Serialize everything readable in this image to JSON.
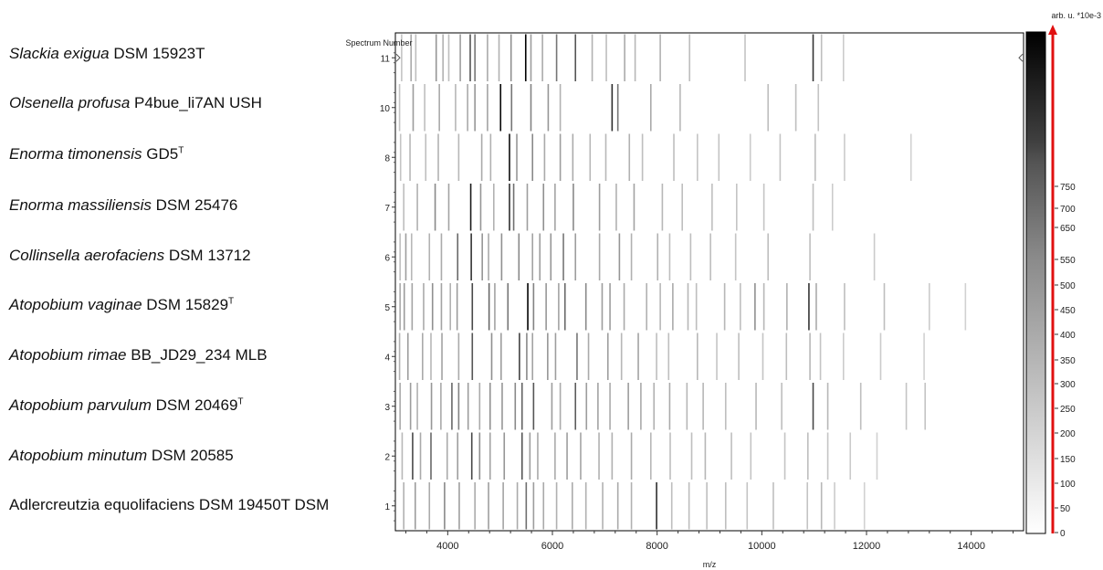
{
  "strain_labels": [
    {
      "italic": "Slackia exigua",
      "rest": " DSM 15923T",
      "sup": ""
    },
    {
      "italic": "Olsenella profusa",
      "rest": " P4bue_li7AN USH",
      "sup": ""
    },
    {
      "italic": "Enorma timonensis",
      "rest": " GD5",
      "sup": "T"
    },
    {
      "italic": "Enorma massiliensis",
      "rest": " DSM 25476",
      "sup": ""
    },
    {
      "italic": "Collinsella aerofaciens",
      "rest": " DSM 13712",
      "sup": ""
    },
    {
      "italic": "Atopobium vaginae",
      "rest": " DSM 15829",
      "sup": "T"
    },
    {
      "italic": "Atopobium rimae",
      "rest": " BB_JD29_234 MLB",
      "sup": ""
    },
    {
      "italic": "Atopobium parvulum",
      "rest": " DSM 20469",
      "sup": "T"
    },
    {
      "italic": "Atopobium minutum",
      "rest": " DSM 20585",
      "sup": ""
    },
    {
      "italic": "",
      "rest": "Adlercreutzia equolifaciens DSM 19450T DSM",
      "sup": ""
    }
  ],
  "chart_data": {
    "type": "heatmap",
    "ylabel": "Spectrum Number",
    "xlabel": "m/z",
    "xlim": [
      3000,
      15000
    ],
    "xticks": [
      4000,
      6000,
      8000,
      10000,
      12000,
      14000
    ],
    "colorbar": {
      "title": "arb. u. *10e-3",
      "ticks": [
        0,
        50,
        100,
        150,
        200,
        250,
        300,
        350,
        400,
        450,
        500,
        550,
        650,
        700,
        750
      ],
      "max": 780
    },
    "rows": [
      {
        "spectrum": "11",
        "peaks": [
          [
            3120,
            180
          ],
          [
            3300,
            260
          ],
          [
            3390,
            200
          ],
          [
            3780,
            320
          ],
          [
            3910,
            240
          ],
          [
            4020,
            200
          ],
          [
            4240,
            300
          ],
          [
            4430,
            520
          ],
          [
            4520,
            420
          ],
          [
            4760,
            260
          ],
          [
            4980,
            240
          ],
          [
            5210,
            340
          ],
          [
            5490,
            780
          ],
          [
            5590,
            300
          ],
          [
            5810,
            260
          ],
          [
            6080,
            420
          ],
          [
            6440,
            520
          ],
          [
            6760,
            240
          ],
          [
            7030,
            200
          ],
          [
            7380,
            260
          ],
          [
            7580,
            220
          ],
          [
            8060,
            240
          ],
          [
            8620,
            200
          ],
          [
            9680,
            180
          ],
          [
            10980,
            620
          ],
          [
            11140,
            200
          ],
          [
            11560,
            160
          ]
        ]
      },
      {
        "spectrum": "10",
        "peaks": [
          [
            3080,
            180
          ],
          [
            3340,
            300
          ],
          [
            3560,
            200
          ],
          [
            3840,
            260
          ],
          [
            4150,
            220
          ],
          [
            4380,
            260
          ],
          [
            4520,
            320
          ],
          [
            4760,
            280
          ],
          [
            5010,
            760
          ],
          [
            5220,
            420
          ],
          [
            5590,
            380
          ],
          [
            5920,
            320
          ],
          [
            6150,
            240
          ],
          [
            7140,
            640
          ],
          [
            7250,
            420
          ],
          [
            7880,
            260
          ],
          [
            8440,
            220
          ],
          [
            10120,
            200
          ],
          [
            10650,
            200
          ],
          [
            11080,
            180
          ]
        ]
      },
      {
        "spectrum": "8",
        "peaks": [
          [
            3100,
            180
          ],
          [
            3280,
            220
          ],
          [
            3580,
            200
          ],
          [
            3820,
            240
          ],
          [
            4210,
            220
          ],
          [
            4650,
            260
          ],
          [
            4820,
            240
          ],
          [
            5180,
            740
          ],
          [
            5320,
            320
          ],
          [
            5620,
            360
          ],
          [
            5850,
            260
          ],
          [
            6150,
            300
          ],
          [
            6390,
            260
          ],
          [
            6720,
            220
          ],
          [
            7020,
            220
          ],
          [
            7470,
            240
          ],
          [
            7720,
            200
          ],
          [
            8320,
            200
          ],
          [
            8770,
            180
          ],
          [
            9180,
            180
          ],
          [
            9780,
            160
          ],
          [
            10350,
            180
          ],
          [
            11020,
            200
          ],
          [
            11580,
            160
          ],
          [
            12850,
            140
          ]
        ]
      },
      {
        "spectrum": "7",
        "peaks": [
          [
            3160,
            200
          ],
          [
            3420,
            240
          ],
          [
            3760,
            360
          ],
          [
            4020,
            280
          ],
          [
            4440,
            700
          ],
          [
            4630,
            320
          ],
          [
            4880,
            240
          ],
          [
            5180,
            640
          ],
          [
            5260,
            440
          ],
          [
            5520,
            300
          ],
          [
            5830,
            340
          ],
          [
            6050,
            280
          ],
          [
            6400,
            360
          ],
          [
            6900,
            300
          ],
          [
            7220,
            240
          ],
          [
            7560,
            280
          ],
          [
            8100,
            220
          ],
          [
            8480,
            200
          ],
          [
            9050,
            200
          ],
          [
            9520,
            180
          ],
          [
            10040,
            180
          ],
          [
            10980,
            200
          ],
          [
            11350,
            160
          ]
        ]
      },
      {
        "spectrum": "6",
        "peaks": [
          [
            3090,
            200
          ],
          [
            3200,
            300
          ],
          [
            3310,
            220
          ],
          [
            3650,
            240
          ],
          [
            3880,
            260
          ],
          [
            4190,
            460
          ],
          [
            4450,
            620
          ],
          [
            4660,
            320
          ],
          [
            4780,
            260
          ],
          [
            5030,
            340
          ],
          [
            5360,
            360
          ],
          [
            5620,
            280
          ],
          [
            5760,
            300
          ],
          [
            5970,
            320
          ],
          [
            6210,
            420
          ],
          [
            6440,
            300
          ],
          [
            6900,
            260
          ],
          [
            7280,
            320
          ],
          [
            7510,
            240
          ],
          [
            8010,
            240
          ],
          [
            8240,
            200
          ],
          [
            8640,
            200
          ],
          [
            9020,
            200
          ],
          [
            9500,
            180
          ],
          [
            10120,
            200
          ],
          [
            10920,
            200
          ],
          [
            12150,
            160
          ]
        ]
      },
      {
        "spectrum": "5",
        "peaks": [
          [
            3090,
            260
          ],
          [
            3170,
            300
          ],
          [
            3320,
            280
          ],
          [
            3540,
            260
          ],
          [
            3710,
            340
          ],
          [
            3880,
            280
          ],
          [
            4050,
            240
          ],
          [
            4180,
            300
          ],
          [
            4470,
            560
          ],
          [
            4790,
            460
          ],
          [
            4900,
            280
          ],
          [
            5150,
            420
          ],
          [
            5530,
            780
          ],
          [
            5640,
            380
          ],
          [
            5880,
            320
          ],
          [
            6120,
            280
          ],
          [
            6240,
            460
          ],
          [
            6640,
            360
          ],
          [
            6950,
            300
          ],
          [
            7100,
            300
          ],
          [
            7370,
            260
          ],
          [
            7800,
            240
          ],
          [
            8060,
            220
          ],
          [
            8300,
            260
          ],
          [
            8590,
            220
          ],
          [
            8750,
            200
          ],
          [
            9290,
            220
          ],
          [
            9590,
            200
          ],
          [
            9870,
            340
          ],
          [
            10040,
            220
          ],
          [
            10480,
            240
          ],
          [
            10900,
            620
          ],
          [
            11040,
            260
          ],
          [
            11580,
            200
          ],
          [
            12340,
            200
          ],
          [
            13200,
            160
          ],
          [
            13890,
            140
          ]
        ]
      },
      {
        "spectrum": "4",
        "peaks": [
          [
            3080,
            240
          ],
          [
            3240,
            300
          ],
          [
            3520,
            260
          ],
          [
            3680,
            220
          ],
          [
            3890,
            280
          ],
          [
            4210,
            260
          ],
          [
            4470,
            520
          ],
          [
            4840,
            340
          ],
          [
            5020,
            300
          ],
          [
            5370,
            580
          ],
          [
            5510,
            360
          ],
          [
            5620,
            280
          ],
          [
            5910,
            320
          ],
          [
            6060,
            300
          ],
          [
            6470,
            420
          ],
          [
            6690,
            260
          ],
          [
            7060,
            300
          ],
          [
            7320,
            220
          ],
          [
            7640,
            280
          ],
          [
            7990,
            200
          ],
          [
            8220,
            200
          ],
          [
            8770,
            220
          ],
          [
            9140,
            180
          ],
          [
            9560,
            200
          ],
          [
            10020,
            180
          ],
          [
            10470,
            200
          ],
          [
            10920,
            220
          ],
          [
            11120,
            180
          ],
          [
            11560,
            160
          ],
          [
            12270,
            160
          ],
          [
            13100,
            140
          ]
        ]
      },
      {
        "spectrum": "3",
        "peaks": [
          [
            3090,
            260
          ],
          [
            3290,
            300
          ],
          [
            3420,
            240
          ],
          [
            3690,
            320
          ],
          [
            3870,
            260
          ],
          [
            4080,
            460
          ],
          [
            4210,
            380
          ],
          [
            4390,
            300
          ],
          [
            4610,
            260
          ],
          [
            4810,
            340
          ],
          [
            5040,
            320
          ],
          [
            5290,
            360
          ],
          [
            5420,
            480
          ],
          [
            5640,
            520
          ],
          [
            5990,
            300
          ],
          [
            6150,
            260
          ],
          [
            6440,
            500
          ],
          [
            6650,
            300
          ],
          [
            6870,
            280
          ],
          [
            7100,
            260
          ],
          [
            7450,
            300
          ],
          [
            7690,
            260
          ],
          [
            7940,
            240
          ],
          [
            8240,
            260
          ],
          [
            8570,
            220
          ],
          [
            8880,
            220
          ],
          [
            9310,
            200
          ],
          [
            9890,
            220
          ],
          [
            10380,
            200
          ],
          [
            10980,
            560
          ],
          [
            11260,
            220
          ],
          [
            11890,
            200
          ],
          [
            12760,
            180
          ],
          [
            13120,
            180
          ]
        ]
      },
      {
        "spectrum": "2",
        "peaks": [
          [
            3130,
            220
          ],
          [
            3330,
            560
          ],
          [
            3480,
            260
          ],
          [
            3680,
            460
          ],
          [
            3990,
            260
          ],
          [
            4190,
            300
          ],
          [
            4460,
            560
          ],
          [
            4610,
            340
          ],
          [
            4810,
            280
          ],
          [
            5080,
            320
          ],
          [
            5420,
            520
          ],
          [
            5570,
            300
          ],
          [
            5720,
            260
          ],
          [
            6050,
            260
          ],
          [
            6280,
            300
          ],
          [
            6540,
            280
          ],
          [
            6890,
            240
          ],
          [
            7140,
            240
          ],
          [
            7510,
            260
          ],
          [
            7880,
            220
          ],
          [
            8250,
            200
          ],
          [
            8660,
            200
          ],
          [
            8920,
            220
          ],
          [
            9420,
            200
          ],
          [
            9790,
            180
          ],
          [
            10440,
            180
          ],
          [
            10880,
            200
          ],
          [
            11260,
            180
          ],
          [
            11690,
            160
          ],
          [
            12200,
            140
          ]
        ]
      },
      {
        "spectrum": "1",
        "peaks": [
          [
            3160,
            240
          ],
          [
            3380,
            300
          ],
          [
            3650,
            260
          ],
          [
            3940,
            360
          ],
          [
            4220,
            300
          ],
          [
            4520,
            260
          ],
          [
            4780,
            300
          ],
          [
            5060,
            280
          ],
          [
            5330,
            260
          ],
          [
            5500,
            440
          ],
          [
            5640,
            300
          ],
          [
            5830,
            260
          ],
          [
            6080,
            240
          ],
          [
            6380,
            260
          ],
          [
            6640,
            240
          ],
          [
            6960,
            240
          ],
          [
            7250,
            260
          ],
          [
            7510,
            240
          ],
          [
            7990,
            640
          ],
          [
            8280,
            200
          ],
          [
            8610,
            200
          ],
          [
            8950,
            200
          ],
          [
            9310,
            200
          ],
          [
            9720,
            180
          ],
          [
            10220,
            200
          ],
          [
            10870,
            180
          ],
          [
            11140,
            220
          ],
          [
            11390,
            160
          ],
          [
            11960,
            140
          ]
        ]
      }
    ]
  }
}
